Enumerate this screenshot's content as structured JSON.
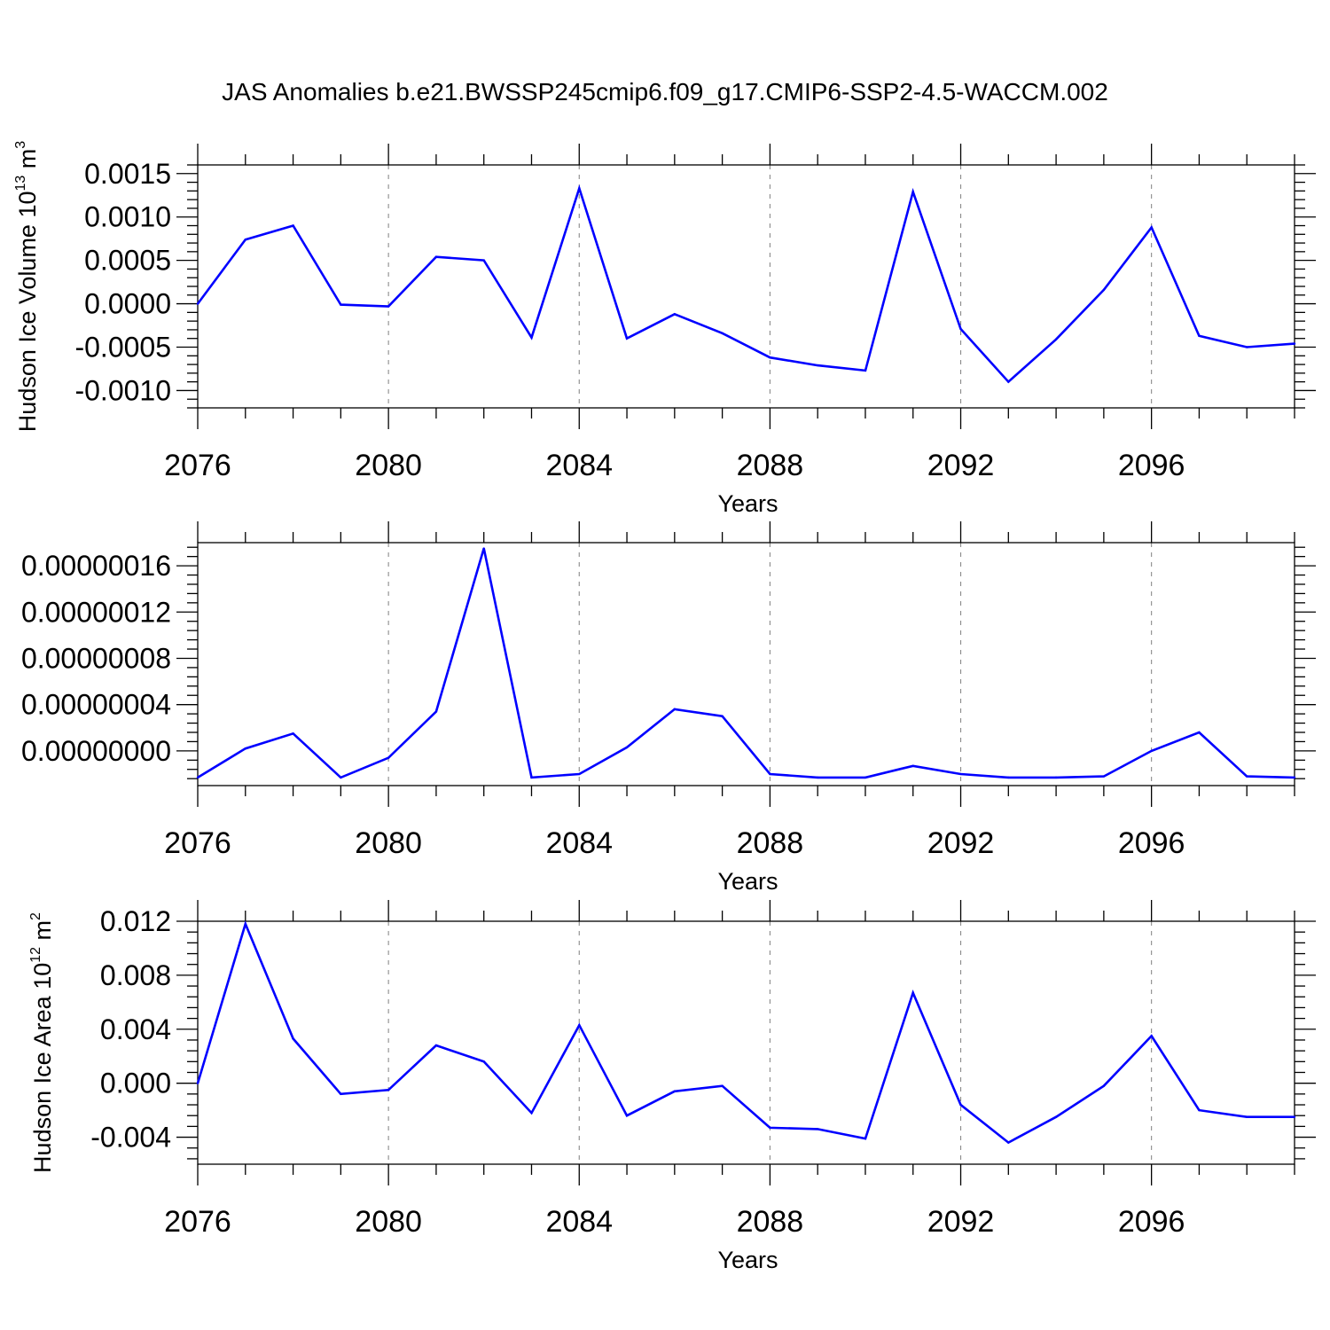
{
  "title": "JAS Anomalies b.e21.BWSSP245cmip6.f09_g17.CMIP6-SSP2-4.5-WACCM.002",
  "colors": {
    "series": "#0000ff",
    "grid": "#8a8a8a",
    "axis": "#000000"
  },
  "chart_data": [
    {
      "type": "line",
      "xlabel": "Years",
      "ylabel": "Hudson Ice Volume 10",
      "ylabel_superscript": "13",
      "ylabel_unit": "m",
      "ylabel_unit_superscript": "3",
      "xlim": [
        2076,
        2099
      ],
      "ylim": [
        -0.0012,
        0.0016
      ],
      "x_tick_values": [
        2076,
        2080,
        2084,
        2088,
        2092,
        2096
      ],
      "x_tick_labels": [
        "2076",
        "2080",
        "2084",
        "2088",
        "2092",
        "2096"
      ],
      "y_tick_values": [
        0.0015,
        0.001,
        0.0005,
        0,
        -0.0005,
        -0.001
      ],
      "y_tick_labels": [
        "0.0015",
        "0.0010",
        "0.0005",
        "0.0000",
        "-0.0005",
        "-0.0010"
      ],
      "grid": "vertical dashed at major x ticks",
      "series": [
        {
          "x": [
            2076,
            2077,
            2078,
            2079,
            2080,
            2081,
            2082,
            2083,
            2084,
            2085,
            2086,
            2087,
            2088,
            2089,
            2090,
            2091,
            2092,
            2093,
            2094,
            2095,
            2096,
            2097,
            2098,
            2099
          ],
          "values": [
            0.0,
            0.00074,
            0.0009,
            -1e-05,
            -3e-05,
            0.00054,
            0.0005,
            -0.00039,
            0.00133,
            -0.0004,
            -0.00012,
            -0.00034,
            -0.00062,
            -0.00071,
            -0.00077,
            0.00129,
            -0.00029,
            -0.0009,
            -0.00041,
            0.00016,
            0.00088,
            -0.00037,
            -0.0005,
            -0.00046
          ]
        }
      ]
    },
    {
      "type": "line",
      "xlabel": "Years",
      "xlim": [
        2076,
        2099
      ],
      "ylim": [
        -3e-08,
        1.8e-07
      ],
      "x_tick_values": [
        2076,
        2080,
        2084,
        2088,
        2092,
        2096
      ],
      "x_tick_labels": [
        "2076",
        "2080",
        "2084",
        "2088",
        "2092",
        "2096"
      ],
      "y_tick_values": [
        1.6e-07,
        1.2e-07,
        8e-08,
        4e-08,
        0
      ],
      "y_tick_labels": [
        "0.00000016",
        "0.00000012",
        "0.00000008",
        "0.00000004",
        "0.00000000"
      ],
      "grid": "vertical dashed at major x ticks",
      "series": [
        {
          "x": [
            2076,
            2077,
            2078,
            2079,
            2080,
            2081,
            2082,
            2083,
            2084,
            2085,
            2086,
            2087,
            2088,
            2089,
            2090,
            2091,
            2092,
            2093,
            2094,
            2095,
            2096,
            2097,
            2098,
            2099
          ],
          "values": [
            -2.3e-08,
            2e-09,
            1.5e-08,
            -2.3e-08,
            -6e-09,
            3.4e-08,
            1.75e-07,
            -2.3e-08,
            -2e-08,
            3e-09,
            3.6e-08,
            3e-08,
            -2e-08,
            -2.3e-08,
            -2.3e-08,
            -1.3e-08,
            -2e-08,
            -2.3e-08,
            -2.3e-08,
            -2.2e-08,
            0.0,
            1.6e-08,
            -2.2e-08,
            -2.3e-08
          ]
        }
      ]
    },
    {
      "type": "line",
      "xlabel": "Years",
      "ylabel": "Hudson Ice Area 10",
      "ylabel_superscript": "12",
      "ylabel_unit": "m",
      "ylabel_unit_superscript": "2",
      "xlim": [
        2076,
        2099
      ],
      "ylim": [
        -0.006,
        0.012
      ],
      "x_tick_values": [
        2076,
        2080,
        2084,
        2088,
        2092,
        2096
      ],
      "x_tick_labels": [
        "2076",
        "2080",
        "2084",
        "2088",
        "2092",
        "2096"
      ],
      "y_tick_values": [
        0.012,
        0.008,
        0.004,
        0,
        -0.004
      ],
      "y_tick_labels": [
        "0.012",
        "0.008",
        "0.004",
        "0.000",
        "-0.004"
      ],
      "grid": "vertical dashed at major x ticks",
      "series": [
        {
          "x": [
            2076,
            2077,
            2078,
            2079,
            2080,
            2081,
            2082,
            2083,
            2084,
            2085,
            2086,
            2087,
            2088,
            2089,
            2090,
            2091,
            2092,
            2093,
            2094,
            2095,
            2096,
            2097,
            2098,
            2099
          ],
          "values": [
            0.0,
            0.0118,
            0.0033,
            -0.0008,
            -0.0005,
            0.0028,
            0.0016,
            -0.0022,
            0.0043,
            -0.0024,
            -0.0006,
            -0.0002,
            -0.0033,
            -0.0034,
            -0.0041,
            0.0067,
            -0.0016,
            -0.0044,
            -0.0025,
            -0.0002,
            0.0035,
            -0.002,
            -0.0025,
            -0.0025
          ]
        }
      ]
    }
  ]
}
